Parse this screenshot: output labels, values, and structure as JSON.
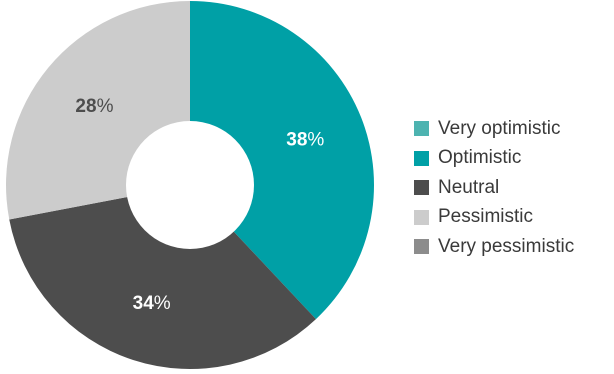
{
  "chart_data": {
    "type": "pie",
    "donut": true,
    "title": "",
    "legend_position": "right",
    "series": [
      {
        "name": "Very optimistic",
        "value": 0,
        "color": "#4db3b0"
      },
      {
        "name": "Optimistic",
        "value": 38,
        "color": "#00a0a6",
        "label_num": "38",
        "label_unit": "%",
        "label_color": "#ffffff"
      },
      {
        "name": "Neutral",
        "value": 34,
        "color": "#4d4d4d",
        "label_num": "34",
        "label_unit": "%",
        "label_color": "#ffffff"
      },
      {
        "name": "Pessimistic",
        "value": 28,
        "color": "#cccccc",
        "label_num": "28",
        "label_unit": "%",
        "label_color": "#4d4d4d"
      },
      {
        "name": "Very pessimistic",
        "value": 0,
        "color": "#8c8c8c"
      }
    ]
  }
}
